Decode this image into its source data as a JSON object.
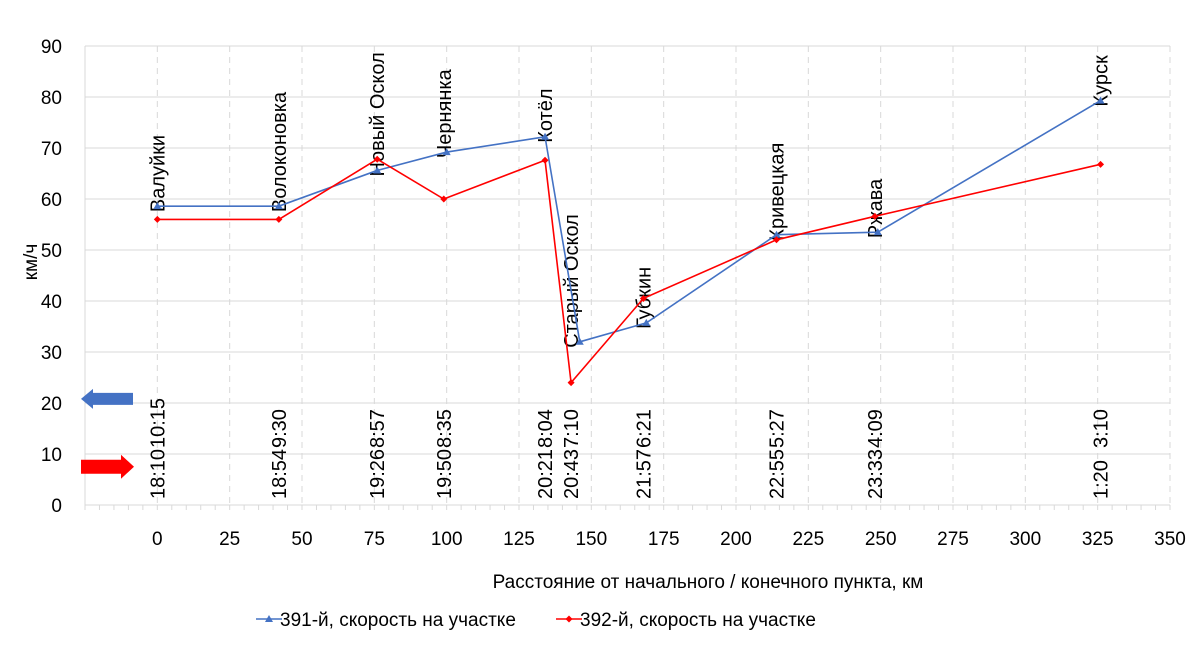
{
  "chart_data": {
    "type": "line",
    "xlabel": "Расстояние от начального / конечного пункта, км",
    "ylabel": "км/ч",
    "xlim": [
      -25,
      350
    ],
    "ylim": [
      0,
      90
    ],
    "x_ticks": [
      0,
      25,
      50,
      75,
      100,
      125,
      150,
      175,
      200,
      225,
      250,
      275,
      300,
      325,
      350
    ],
    "y_ticks": [
      0,
      10,
      20,
      30,
      40,
      50,
      60,
      70,
      80,
      90
    ],
    "grid": true,
    "legend_position": "bottom",
    "series": [
      {
        "name": "391-й, скорость на участке",
        "color": "#4472C4",
        "marker": "triangle",
        "points": [
          {
            "x": 0,
            "y": 58.6
          },
          {
            "x": 42,
            "y": 58.6
          },
          {
            "x": 76,
            "y": 65.6
          },
          {
            "x": 100,
            "y": 69.2
          },
          {
            "x": 134,
            "y": 72.2
          },
          {
            "x": 146,
            "y": 32
          },
          {
            "x": 169,
            "y": 35.7
          },
          {
            "x": 214,
            "y": 53
          },
          {
            "x": 249,
            "y": 53.5
          },
          {
            "x": 326,
            "y": 79.3
          }
        ]
      },
      {
        "name": "392-й, скорость на участке",
        "color": "#FF0000",
        "marker": "diamond",
        "points": [
          {
            "x": 0,
            "y": 56
          },
          {
            "x": 42,
            "y": 56
          },
          {
            "x": 76,
            "y": 67.8
          },
          {
            "x": 99,
            "y": 60
          },
          {
            "x": 134,
            "y": 67.6
          },
          {
            "x": 143,
            "y": 24
          },
          {
            "x": 168,
            "y": 40.5
          },
          {
            "x": 214,
            "y": 52
          },
          {
            "x": 248,
            "y": 56.6
          },
          {
            "x": 326,
            "y": 66.8
          }
        ]
      }
    ],
    "stations": [
      {
        "x": 0,
        "name": "Валуйки",
        "top": "10:15",
        "bottom": "18:10"
      },
      {
        "x": 42,
        "name": "Волоконовка",
        "top": "9:30",
        "bottom": "18:54"
      },
      {
        "x": 76,
        "name": "Новый Оскол",
        "top": "8:57",
        "bottom": "19:26"
      },
      {
        "x": 99,
        "name": "Чернянка",
        "top": "8:35",
        "bottom": "19:50"
      },
      {
        "x": 134,
        "name": "Котёл",
        "top": "8:04",
        "bottom": "20:21"
      },
      {
        "x": 143,
        "name": "Старый Оскол",
        "top": "7:10",
        "bottom": "20:43"
      },
      {
        "x": 168,
        "name": "Губкин",
        "top": "6:21",
        "bottom": "21:57"
      },
      {
        "x": 214,
        "name": "Кривецкая",
        "top": "5:27",
        "bottom": "22:55"
      },
      {
        "x": 248,
        "name": "Ржава",
        "top": "4:09",
        "bottom": "23:33"
      },
      {
        "x": 326,
        "name": "Курск",
        "top": "3:10",
        "bottom": "1:20"
      }
    ],
    "direction_arrows": [
      {
        "direction": "left",
        "color": "#4472C4"
      },
      {
        "direction": "right",
        "color": "#FF0000"
      }
    ]
  }
}
